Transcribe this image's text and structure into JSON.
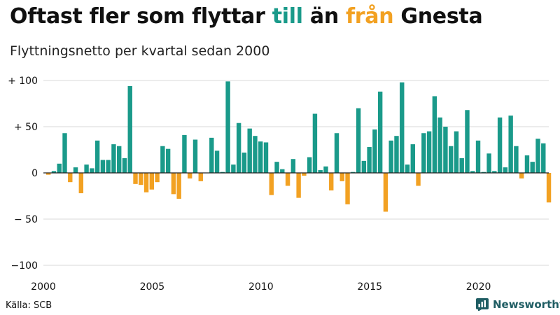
{
  "header": {
    "title_parts": [
      "Oftast fler som flyttar ",
      "till",
      " än ",
      "från",
      " Gnesta"
    ],
    "subtitle": "Flyttningsnetto per kvartal sedan 2000"
  },
  "footer": {
    "source": "Källa: SCB",
    "brand": "Newsworthy",
    "brand_icon": "newsworthy-logo-icon"
  },
  "colors": {
    "positive": "#1a9a8a",
    "negative": "#f2a122",
    "grid": "#d9d9d9",
    "brand": "#1f5d63"
  },
  "chart_data": {
    "type": "bar",
    "title": "",
    "xlabel": "",
    "ylabel": "",
    "ylim": [
      -100,
      100
    ],
    "yticks": [
      100,
      50,
      0,
      -50,
      -100
    ],
    "ytick_labels": [
      "+ 100",
      "+  50",
      "0",
      "− 50",
      "−100"
    ],
    "xticks": [
      "2000",
      "2005",
      "2010",
      "2015",
      "2020"
    ],
    "grid": true,
    "legend": "none",
    "start_quarter": "2000 Q1",
    "values": [
      -2,
      2,
      10,
      43,
      -10,
      6,
      -22,
      9,
      5,
      35,
      14,
      14,
      31,
      29,
      16,
      94,
      -12,
      -13,
      -21,
      -18,
      -10,
      29,
      26,
      -23,
      -28,
      41,
      -6,
      36,
      -9,
      0,
      38,
      24,
      1,
      99,
      9,
      54,
      22,
      48,
      40,
      34,
      33,
      -24,
      12,
      4,
      -14,
      15,
      -27,
      -3,
      17,
      64,
      3,
      7,
      -19,
      43,
      -9,
      -34,
      1,
      70,
      13,
      28,
      47,
      88,
      -42,
      35,
      40,
      98,
      9,
      31,
      -14,
      43,
      45,
      83,
      60,
      50,
      29,
      45,
      16,
      68,
      2,
      35,
      1,
      21,
      2,
      60,
      6,
      62,
      29,
      -6,
      19,
      12,
      37,
      32,
      -32
    ]
  }
}
